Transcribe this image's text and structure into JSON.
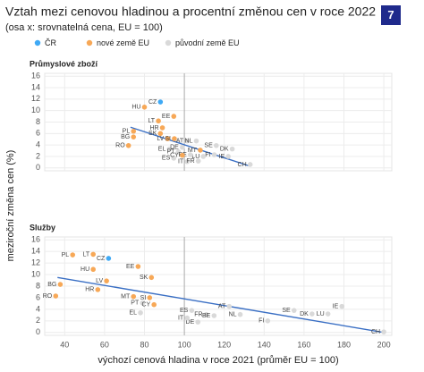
{
  "header": {
    "title": "Vztah mezi cenovou hladinou a procentní změnou cen v roce 2022",
    "subtitle": "(osa x: srovnatelná cena, EU = 100)",
    "badge": "7"
  },
  "chart_data": [
    {
      "type": "scatter",
      "title": "Průmyslové zboží",
      "ylabel": "meziroční změna cen (%)",
      "xlim": [
        30,
        204
      ],
      "ylim": [
        -0.5,
        16.5
      ],
      "xticks": [
        40,
        60,
        80,
        100,
        120,
        140,
        160,
        180,
        200
      ],
      "yticks": [
        0,
        2,
        4,
        6,
        8,
        10,
        12,
        14,
        16
      ],
      "grid": true,
      "xref": 100,
      "series": [
        {
          "name": "ČR",
          "color": "#3fa9f5",
          "x": [
            88
          ],
          "values": [
            11.5
          ],
          "labels": [
            "CZ"
          ]
        },
        {
          "name": "nové země EU",
          "color": "#f7a857",
          "x": [
            80,
            87,
            94.7,
            89,
            74.5,
            74.5,
            88,
            91.6,
            95,
            72,
            99,
            108
          ],
          "values": [
            10.6,
            8.2,
            9,
            7,
            6.4,
            5.4,
            6,
            5.1,
            5.1,
            3.9,
            2.2,
            3.1
          ],
          "labels": [
            "HU",
            "LT",
            "EE",
            "HR",
            "PL",
            "BG",
            "SK",
            "LV",
            "SI",
            "RO",
            "CY",
            "MT"
          ]
        },
        {
          "name": "původní země EU",
          "color": "#d9d9d9",
          "x": [
            92.5,
            99,
            97,
            94.7,
            101.4,
            106,
            116,
            124,
            122,
            115,
            109.5,
            103,
            101.4,
            107,
            133
          ],
          "values": [
            3.3,
            3.6,
            2.8,
            1.7,
            4.7,
            4.7,
            3.9,
            3.3,
            2,
            2.3,
            2,
            2.3,
            1.1,
            1.2,
            0.6
          ],
          "labels": [
            "EL",
            "DE",
            "PT",
            "ES",
            "AT",
            "NL",
            "SE",
            "DK",
            "IE",
            "FI",
            "LU",
            "BE",
            "IT",
            "FR",
            "CH"
          ]
        }
      ],
      "trend_line": {
        "color": "#3a6fc4",
        "x": [
          73,
          133
        ],
        "y": [
          7.1,
          0.3
        ]
      }
    },
    {
      "type": "scatter",
      "title": "Služby",
      "xlabel": "výchozí cenová hladina v roce 2021 (průměr EU = 100)",
      "xlim": [
        30,
        204
      ],
      "ylim": [
        -0.5,
        16.5
      ],
      "xticks": [
        40,
        60,
        80,
        100,
        120,
        140,
        160,
        180,
        200
      ],
      "yticks": [
        0,
        2,
        4,
        6,
        8,
        10,
        12,
        14,
        16
      ],
      "grid": true,
      "xref": 100,
      "series": [
        {
          "name": "ČR",
          "color": "#3fa9f5",
          "x": [
            62
          ],
          "values": [
            12.8
          ],
          "labels": [
            "CZ"
          ]
        },
        {
          "name": "nové země EU",
          "color": "#f7a857",
          "x": [
            44,
            54.3,
            54.3,
            37.8,
            35.5,
            56.6,
            76.8,
            83.5,
            61,
            74.5,
            82.6,
            84.8
          ],
          "values": [
            13.4,
            13.5,
            10.9,
            8.3,
            6.3,
            7.4,
            11.4,
            9.5,
            8.9,
            6.2,
            6,
            4.8
          ],
          "labels": [
            "PL",
            "LT",
            "HU",
            "BG",
            "RO",
            "HR",
            "EE",
            "SK",
            "LV",
            "MT",
            "SI",
            "CY"
          ]
        },
        {
          "name": "původní země EU",
          "color": "#d9d9d9",
          "x": [
            79,
            78,
            122.5,
            103.7,
            111,
            114.9,
            106.8,
            101.4,
            128,
            141.8,
            155,
            164,
            172,
            179,
            200
          ],
          "values": [
            5.1,
            3.4,
            4.5,
            3.8,
            3.1,
            2.9,
            1.8,
            2.5,
            3.1,
            2,
            3.8,
            3.2,
            3.2,
            4.5,
            0.1
          ],
          "labels": [
            "PT",
            "EL",
            "AT",
            "ES",
            "FR",
            "BE",
            "DE",
            "IT",
            "NL",
            "FI",
            "SE",
            "DK",
            "LU",
            "IE",
            "CH"
          ]
        }
      ],
      "trend_line": {
        "color": "#3a6fc4",
        "x": [
          36.4,
          200
        ],
        "y": [
          9.5,
          0
        ]
      }
    }
  ]
}
